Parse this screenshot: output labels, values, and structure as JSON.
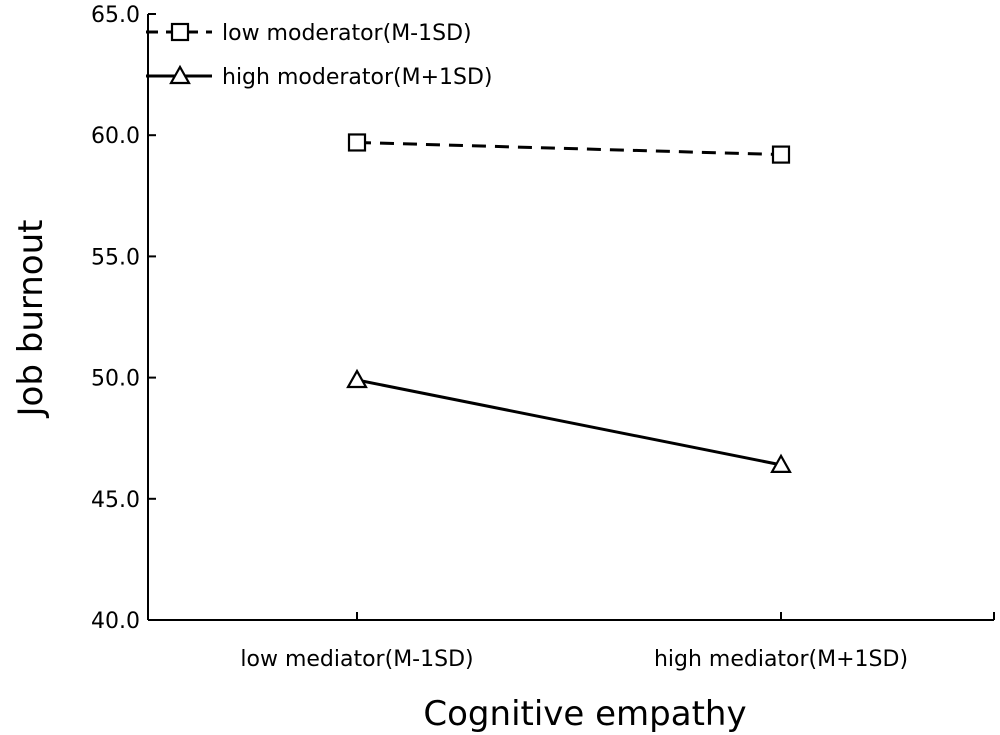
{
  "chart_data": {
    "type": "line",
    "title": "",
    "xlabel": "Cognitive empathy",
    "ylabel": "Job burnout",
    "categories": [
      "low mediator(M-1SD)",
      "high mediator(M+1SD)"
    ],
    "ylim": [
      40.0,
      65.0
    ],
    "yticks": [
      "40.0",
      "45.0",
      "50.0",
      "55.0",
      "60.0",
      "65.0"
    ],
    "grid": false,
    "legend_position": "top-left",
    "series": [
      {
        "name": "low moderator(M-1SD)",
        "marker": "square",
        "line_style": "dashed",
        "values": [
          59.7,
          59.2
        ]
      },
      {
        "name": "high moderator(M+1SD)",
        "marker": "triangle",
        "line_style": "solid",
        "values": [
          49.9,
          46.4
        ]
      }
    ]
  }
}
